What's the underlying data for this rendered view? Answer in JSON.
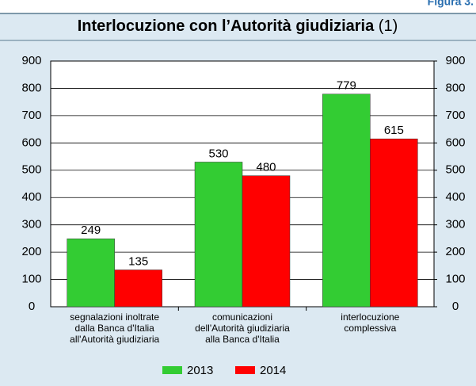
{
  "chart_data": {
    "type": "bar",
    "figure_label": "Figura 3.",
    "title": "Interlocuzione con l’Autorità giudiziaria",
    "title_note": "(1)",
    "categories": [
      [
        "segnalazioni inoltrate",
        "dalla Banca d'Italia",
        "all'Autorità giudiziaria"
      ],
      [
        "comunicazioni",
        "dell'Autorità giudiziaria",
        "alla Banca d'Italia"
      ],
      [
        "interlocuzione",
        "complessiva"
      ]
    ],
    "series": [
      {
        "name": "2013",
        "color": "#33cc33",
        "values": [
          249,
          530,
          779
        ]
      },
      {
        "name": "2014",
        "color": "#ff0000",
        "values": [
          135,
          480,
          615
        ]
      }
    ],
    "ylim": [
      0,
      900
    ],
    "yticks": [
      0,
      100,
      200,
      300,
      400,
      500,
      600,
      700,
      800,
      900
    ],
    "y2lim": [
      0,
      900
    ],
    "y2ticks": [
      0,
      100,
      200,
      300,
      400,
      500,
      600,
      700,
      800,
      900
    ],
    "grid": true
  }
}
